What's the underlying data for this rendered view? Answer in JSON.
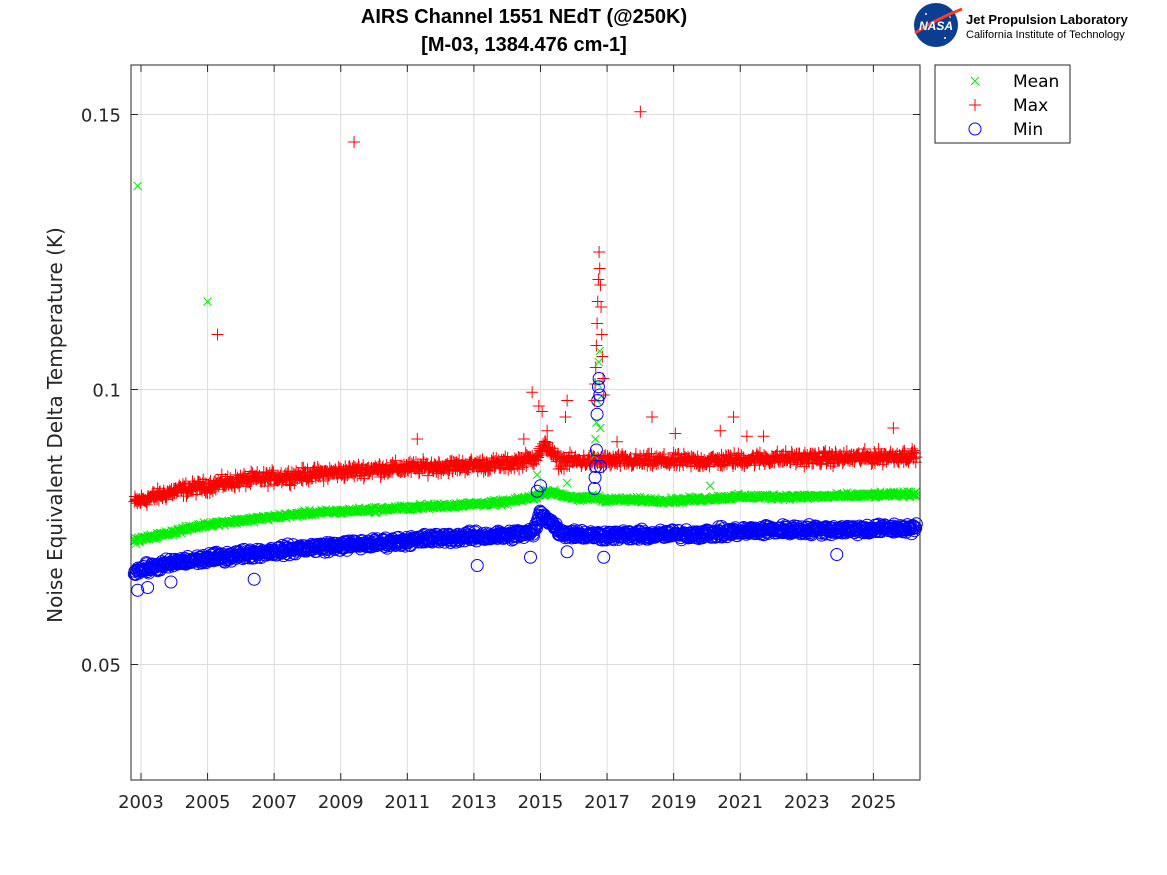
{
  "logo": {
    "badge": "NASA",
    "org": "Jet Propulsion Laboratory",
    "institution": "California Institute of Technology",
    "colors": {
      "badge_blue": "#0b3d91",
      "badge_red": "#fc3d21"
    }
  },
  "chart_data": {
    "type": "scatter",
    "title_line1": "AIRS Channel 1551 NEdT (@250K)",
    "title_line2": "[M-03, 1384.476 cm-1]",
    "xlabel": "",
    "ylabel": "Noise Equivalent Delta Temperature (K)",
    "xlim": [
      2002.7,
      2026.4
    ],
    "ylim": [
      0.029,
      0.159
    ],
    "xticks": [
      2003,
      2005,
      2007,
      2009,
      2011,
      2013,
      2015,
      2017,
      2019,
      2021,
      2023,
      2025
    ],
    "xtick_labels": [
      "2003",
      "2005",
      "2007",
      "2009",
      "2011",
      "2013",
      "2015",
      "2017",
      "2019",
      "2021",
      "2023",
      "2025"
    ],
    "yticks": [
      0.05,
      0.1,
      0.15
    ],
    "ytick_labels": [
      "0.05",
      "0.1",
      "0.15"
    ],
    "grid": true,
    "legend_position": "outside-top-right",
    "series": [
      {
        "name": "Mean",
        "marker": "x",
        "color": "#00ee00",
        "trend": [
          [
            2002.8,
            0.0725
          ],
          [
            2005,
            0.0755
          ],
          [
            2008,
            0.0775
          ],
          [
            2011,
            0.0785
          ],
          [
            2014,
            0.0795
          ],
          [
            2014.85,
            0.0805
          ],
          [
            2015.2,
            0.0815
          ],
          [
            2016.2,
            0.08
          ],
          [
            2016.55,
            0.0805
          ],
          [
            2016.9,
            0.08
          ],
          [
            2019,
            0.0798
          ],
          [
            2021,
            0.0805
          ],
          [
            2023,
            0.0805
          ],
          [
            2026.3,
            0.081
          ]
        ],
        "spread": 0.0007,
        "outliers": [
          [
            2002.9,
            0.137
          ],
          [
            2005.0,
            0.116
          ],
          [
            2014.9,
            0.0845
          ],
          [
            2015.8,
            0.083
          ],
          [
            2020.1,
            0.0825
          ],
          [
            2016.62,
            0.088
          ],
          [
            2016.65,
            0.091
          ],
          [
            2016.68,
            0.094
          ],
          [
            2016.7,
            0.098
          ],
          [
            2016.72,
            0.101
          ],
          [
            2016.75,
            0.105
          ],
          [
            2016.78,
            0.107
          ],
          [
            2016.8,
            0.093
          ]
        ]
      },
      {
        "name": "Max",
        "marker": "+",
        "color": "#ff0000",
        "trend": [
          [
            2002.8,
            0.0795
          ],
          [
            2004,
            0.0815
          ],
          [
            2006,
            0.0835
          ],
          [
            2008,
            0.0845
          ],
          [
            2010,
            0.0855
          ],
          [
            2012,
            0.086
          ],
          [
            2014,
            0.0865
          ],
          [
            2014.8,
            0.0875
          ],
          [
            2015.2,
            0.09
          ],
          [
            2015.5,
            0.087
          ],
          [
            2016.5,
            0.087
          ],
          [
            2018,
            0.087
          ],
          [
            2020,
            0.087
          ],
          [
            2022,
            0.0875
          ],
          [
            2024,
            0.0875
          ],
          [
            2026.3,
            0.088
          ]
        ],
        "spread": 0.0018,
        "outliers": [
          [
            2005.3,
            0.11
          ],
          [
            2009.4,
            0.145
          ],
          [
            2018.0,
            0.1505
          ],
          [
            2014.75,
            0.0995
          ],
          [
            2014.95,
            0.097
          ],
          [
            2015.05,
            0.096
          ],
          [
            2015.2,
            0.0925
          ],
          [
            2015.8,
            0.098
          ],
          [
            2015.75,
            0.095
          ],
          [
            2014.5,
            0.091
          ],
          [
            2018.35,
            0.095
          ],
          [
            2019.05,
            0.092
          ],
          [
            2020.4,
            0.0925
          ],
          [
            2020.8,
            0.095
          ],
          [
            2021.2,
            0.0915
          ],
          [
            2021.7,
            0.0915
          ],
          [
            2025.6,
            0.093
          ],
          [
            2011.3,
            0.091
          ],
          [
            2017.3,
            0.0905
          ],
          [
            2016.62,
            0.098
          ],
          [
            2016.64,
            0.101
          ],
          [
            2016.66,
            0.104
          ],
          [
            2016.68,
            0.108
          ],
          [
            2016.7,
            0.112
          ],
          [
            2016.72,
            0.116
          ],
          [
            2016.74,
            0.12
          ],
          [
            2016.76,
            0.125
          ],
          [
            2016.78,
            0.122
          ],
          [
            2016.8,
            0.119
          ],
          [
            2016.82,
            0.115
          ],
          [
            2016.84,
            0.11
          ],
          [
            2016.86,
            0.106
          ],
          [
            2016.88,
            0.102
          ],
          [
            2016.9,
            0.099
          ]
        ]
      },
      {
        "name": "Min",
        "marker": "o",
        "color": "#0000ff",
        "trend": [
          [
            2002.8,
            0.067
          ],
          [
            2004,
            0.0685
          ],
          [
            2006,
            0.07
          ],
          [
            2008,
            0.0712
          ],
          [
            2010,
            0.072
          ],
          [
            2012,
            0.073
          ],
          [
            2014,
            0.0735
          ],
          [
            2014.8,
            0.074
          ],
          [
            2015.0,
            0.0775
          ],
          [
            2015.3,
            0.076
          ],
          [
            2015.6,
            0.074
          ],
          [
            2016.5,
            0.0735
          ],
          [
            2018,
            0.0735
          ],
          [
            2020,
            0.0738
          ],
          [
            2022,
            0.0745
          ],
          [
            2024,
            0.0745
          ],
          [
            2026.3,
            0.0748
          ]
        ],
        "spread": 0.0013,
        "outliers": [
          [
            2002.9,
            0.0635
          ],
          [
            2003.2,
            0.064
          ],
          [
            2003.9,
            0.065
          ],
          [
            2006.4,
            0.0655
          ],
          [
            2013.1,
            0.068
          ],
          [
            2014.7,
            0.0695
          ],
          [
            2015.8,
            0.0705
          ],
          [
            2016.9,
            0.0695
          ],
          [
            2023.9,
            0.07
          ],
          [
            2014.9,
            0.0815
          ],
          [
            2015.0,
            0.0825
          ],
          [
            2016.62,
            0.082
          ],
          [
            2016.64,
            0.084
          ],
          [
            2016.66,
            0.086
          ],
          [
            2016.68,
            0.089
          ],
          [
            2016.7,
            0.0955
          ],
          [
            2016.72,
            0.098
          ],
          [
            2016.74,
            0.1005
          ],
          [
            2016.76,
            0.102
          ],
          [
            2016.78,
            0.099
          ],
          [
            2016.8,
            0.086
          ]
        ]
      }
    ]
  }
}
